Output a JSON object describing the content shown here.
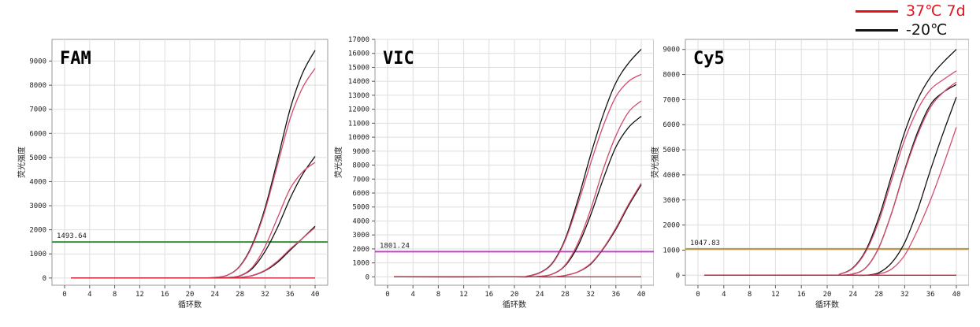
{
  "legend": {
    "items": [
      {
        "label": "37℃ 7d",
        "color": "#e8101a"
      },
      {
        "label": "-20℃",
        "color": "#111111"
      }
    ]
  },
  "chart_data": [
    {
      "type": "line",
      "title": "FAM",
      "xlabel": "循环数",
      "ylabel": "荧光强度",
      "xlim": [
        0,
        40
      ],
      "ylim": [
        -300,
        9900
      ],
      "xticks": [
        0,
        4,
        8,
        12,
        16,
        20,
        24,
        28,
        32,
        36,
        40
      ],
      "yticks": [
        0,
        1000,
        2000,
        3000,
        4000,
        5000,
        6000,
        7000,
        8000,
        9000
      ],
      "threshold": {
        "value": 1493.64,
        "label": "1493.64",
        "color": "#3c8c3c"
      },
      "grid": true,
      "curve_x": [
        1,
        20,
        22,
        24,
        26,
        28,
        30,
        32,
        34,
        36,
        38,
        40
      ],
      "series": [
        {
          "color": "#111111",
          "values": [
            0,
            0,
            0,
            20,
            120,
            500,
            1400,
            2900,
            4900,
            7000,
            8500,
            9450
          ]
        },
        {
          "color": "#d44a6a",
          "values": [
            0,
            0,
            0,
            20,
            120,
            480,
            1350,
            2800,
            4700,
            6600,
            7900,
            8700
          ]
        },
        {
          "color": "#111111",
          "values": [
            0,
            0,
            0,
            0,
            20,
            90,
            400,
            1100,
            2100,
            3300,
            4300,
            5050
          ]
        },
        {
          "color": "#d44a6a",
          "values": [
            0,
            0,
            0,
            0,
            20,
            100,
            450,
            1300,
            2500,
            3700,
            4400,
            4800
          ]
        },
        {
          "color": "#111111",
          "values": [
            0,
            0,
            0,
            0,
            0,
            20,
            100,
            300,
            650,
            1150,
            1650,
            2150
          ]
        },
        {
          "color": "#d44a6a",
          "values": [
            0,
            0,
            0,
            0,
            0,
            20,
            110,
            320,
            700,
            1200,
            1650,
            2100
          ]
        },
        {
          "color": "#cc2236",
          "values": [
            0,
            0,
            0,
            0,
            0,
            0,
            0,
            0,
            0,
            0,
            0,
            0
          ]
        }
      ]
    },
    {
      "type": "line",
      "title": "VIC",
      "xlabel": "循环数",
      "ylabel": "荧光强度",
      "xlim": [
        0,
        40
      ],
      "ylim": [
        -600,
        17000
      ],
      "xticks": [
        0,
        4,
        8,
        12,
        16,
        20,
        24,
        28,
        32,
        36,
        40
      ],
      "yticks": [
        0,
        1000,
        2000,
        3000,
        4000,
        5000,
        6000,
        7000,
        8000,
        9000,
        10000,
        11000,
        12000,
        13000,
        14000,
        15000,
        16000,
        17000
      ],
      "threshold": {
        "value": 1801.24,
        "label": "1801.24",
        "color": "#c040c8"
      },
      "grid": true,
      "curve_x": [
        1,
        20,
        22,
        24,
        26,
        28,
        30,
        32,
        34,
        36,
        38,
        40
      ],
      "series": [
        {
          "color": "#111111",
          "values": [
            0,
            0,
            50,
            300,
            1000,
            2700,
            5500,
            8700,
            11600,
            13900,
            15300,
            16300
          ]
        },
        {
          "color": "#d44a6a",
          "values": [
            0,
            0,
            50,
            280,
            950,
            2600,
            5200,
            8100,
            10800,
            12900,
            14000,
            14500
          ]
        },
        {
          "color": "#111111",
          "values": [
            0,
            0,
            0,
            30,
            200,
            800,
            2200,
            4400,
            7000,
            9300,
            10700,
            11500
          ]
        },
        {
          "color": "#d44a6a",
          "values": [
            0,
            0,
            0,
            30,
            210,
            850,
            2400,
            4800,
            7700,
            10100,
            11800,
            12600
          ]
        },
        {
          "color": "#111111",
          "values": [
            0,
            0,
            0,
            0,
            0,
            100,
            350,
            900,
            2000,
            3400,
            5100,
            6600
          ]
        },
        {
          "color": "#d44a6a",
          "values": [
            0,
            0,
            0,
            0,
            0,
            100,
            360,
            950,
            2050,
            3500,
            5200,
            6700
          ]
        },
        {
          "color": "#cc2236",
          "values": [
            0,
            0,
            0,
            0,
            0,
            0,
            0,
            0,
            0,
            0,
            0,
            0
          ]
        }
      ]
    },
    {
      "type": "line",
      "title": "Cy5",
      "xlabel": "循环数",
      "ylabel": "荧光强度",
      "xlim": [
        0,
        40
      ],
      "ylim": [
        -400,
        9400
      ],
      "xticks": [
        0,
        4,
        8,
        12,
        16,
        20,
        24,
        28,
        32,
        36,
        40
      ],
      "yticks": [
        0,
        1000,
        2000,
        3000,
        4000,
        5000,
        6000,
        7000,
        8000,
        9000
      ],
      "threshold": {
        "value": 1047.83,
        "label": "1047.83",
        "color": "#b89040"
      },
      "grid": true,
      "curve_x": [
        1,
        20,
        22,
        24,
        26,
        28,
        30,
        32,
        34,
        36,
        38,
        40
      ],
      "series": [
        {
          "color": "#111111",
          "values": [
            0,
            0,
            50,
            300,
            1000,
            2300,
            4000,
            5700,
            7000,
            7900,
            8500,
            9000
          ]
        },
        {
          "color": "#d44a6a",
          "values": [
            0,
            0,
            50,
            280,
            950,
            2150,
            3800,
            5400,
            6600,
            7400,
            7800,
            8150
          ]
        },
        {
          "color": "#111111",
          "values": [
            0,
            0,
            0,
            50,
            300,
            1100,
            2500,
            4200,
            5700,
            6800,
            7300,
            7600
          ]
        },
        {
          "color": "#d44a6a",
          "values": [
            0,
            0,
            0,
            50,
            300,
            1100,
            2500,
            4150,
            5600,
            6700,
            7300,
            7700
          ]
        },
        {
          "color": "#111111",
          "values": [
            0,
            0,
            0,
            0,
            0,
            100,
            500,
            1300,
            2600,
            4200,
            5700,
            7100
          ]
        },
        {
          "color": "#d44a6a",
          "values": [
            0,
            0,
            0,
            0,
            0,
            50,
            250,
            800,
            1800,
            3000,
            4400,
            5900
          ]
        },
        {
          "color": "#cc2236",
          "values": [
            0,
            0,
            0,
            0,
            0,
            0,
            0,
            0,
            0,
            0,
            0,
            0
          ]
        }
      ]
    }
  ]
}
